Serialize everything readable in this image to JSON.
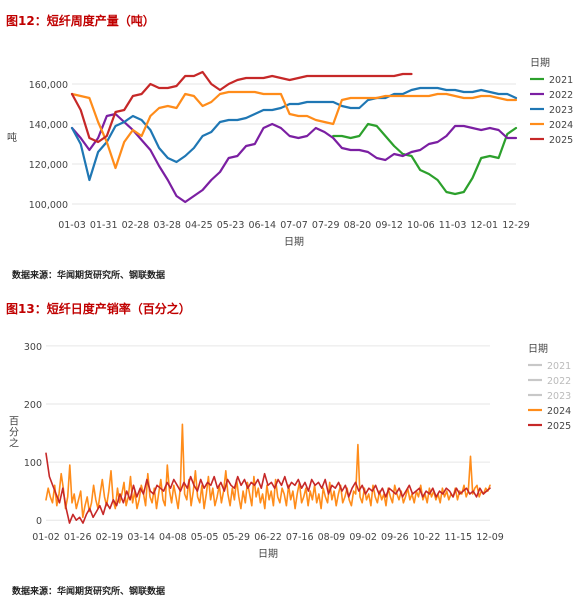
{
  "figures": [
    {
      "title": "图12：短纤周度产量（吨）",
      "source": "数据来源：华闻期货研究所、钢联数据"
    },
    {
      "title": "图13：短纤日度产销率（百分之）",
      "source": "数据来源：华闻期货研究所、钢联数据"
    }
  ],
  "chart_data": [
    {
      "type": "line",
      "title": "",
      "xlabel": "日期",
      "ylabel": "吨",
      "ylim": [
        95000,
        172000
      ],
      "yticks": [
        "100,000",
        "120,000",
        "140,000",
        "160,000"
      ],
      "ytick_values": [
        100000,
        120000,
        140000,
        160000
      ],
      "xtick_labels": [
        "01-03",
        "01-31",
        "02-28",
        "03-28",
        "04-25",
        "05-23",
        "06-14",
        "07-07",
        "07-29",
        "08-20",
        "09-12",
        "10-06",
        "11-03",
        "12-01",
        "12-29"
      ],
      "x_count": 52,
      "legend_title": "日期",
      "legend_position": "right",
      "grid": "horizontal",
      "series": [
        {
          "name": "2021",
          "color": "#2ca02c",
          "x": [
            30,
            31,
            32,
            33,
            34,
            35,
            36,
            37,
            38,
            39,
            40,
            41,
            42,
            43,
            44,
            45,
            46,
            47,
            48,
            49,
            50,
            51
          ],
          "values": [
            134000,
            134000,
            133000,
            134000,
            140000,
            139000,
            134000,
            129000,
            125000,
            124000,
            117000,
            115000,
            112000,
            106000,
            105000,
            106000,
            113000,
            123000,
            124000,
            123000,
            135000,
            138000
          ]
        },
        {
          "name": "2022",
          "color": "#7b1fa2",
          "x": [
            0,
            1,
            2,
            3,
            4,
            5,
            6,
            7,
            8,
            9,
            10,
            11,
            12,
            13,
            14,
            15,
            16,
            17,
            18,
            19,
            20,
            21,
            22,
            23,
            24,
            25,
            26,
            27,
            28,
            29,
            30,
            31,
            32,
            33,
            34,
            35,
            36,
            37,
            38,
            39,
            40,
            41,
            42,
            43,
            44,
            45,
            46,
            47,
            48,
            49,
            50,
            51
          ],
          "values": [
            138000,
            133000,
            127000,
            133000,
            144000,
            145000,
            141000,
            137000,
            132000,
            127000,
            119000,
            112000,
            104000,
            101000,
            104000,
            107000,
            112000,
            116000,
            123000,
            124000,
            129000,
            130000,
            138000,
            140000,
            138000,
            134000,
            133000,
            134000,
            138000,
            136000,
            133000,
            128000,
            127000,
            127000,
            126000,
            123000,
            122000,
            125000,
            124000,
            126000,
            127000,
            130000,
            131000,
            134000,
            139000,
            139000,
            138000,
            137000,
            138000,
            137000,
            133000,
            133000
          ]
        },
        {
          "name": "2023",
          "color": "#1f77b4",
          "x": [
            0,
            1,
            2,
            3,
            4,
            5,
            6,
            7,
            8,
            9,
            10,
            11,
            12,
            13,
            14,
            15,
            16,
            17,
            18,
            19,
            20,
            21,
            22,
            23,
            24,
            25,
            26,
            27,
            28,
            29,
            30,
            31,
            32,
            33,
            34,
            35,
            36,
            37,
            38,
            39,
            40,
            41,
            42,
            43,
            44,
            45,
            46,
            47,
            48,
            49,
            50,
            51
          ],
          "values": [
            138000,
            130000,
            112000,
            126000,
            131000,
            139000,
            141000,
            144000,
            142000,
            137000,
            128000,
            123000,
            121000,
            124000,
            128000,
            134000,
            136000,
            141000,
            142000,
            142000,
            143000,
            145000,
            147000,
            147000,
            148000,
            150000,
            150000,
            151000,
            151000,
            151000,
            151000,
            149000,
            148000,
            148000,
            152000,
            153000,
            153000,
            155000,
            155000,
            157000,
            158000,
            158000,
            158000,
            157000,
            157000,
            156000,
            156000,
            157000,
            156000,
            155000,
            155000,
            153000
          ]
        },
        {
          "name": "2024",
          "color": "#ff8c1a",
          "x": [
            0,
            1,
            2,
            3,
            4,
            5,
            6,
            7,
            8,
            9,
            10,
            11,
            12,
            13,
            14,
            15,
            16,
            17,
            18,
            19,
            20,
            21,
            22,
            23,
            24,
            25,
            26,
            27,
            28,
            29,
            30,
            31,
            32,
            33,
            34,
            35,
            36,
            37,
            38,
            39,
            40,
            41,
            42,
            43,
            44,
            45,
            46,
            47,
            48,
            49,
            50,
            51
          ],
          "values": [
            155000,
            154000,
            153000,
            141000,
            131000,
            118000,
            131000,
            137000,
            134000,
            144000,
            148000,
            149000,
            148000,
            155000,
            154000,
            149000,
            151000,
            155000,
            156000,
            156000,
            156000,
            156000,
            155000,
            155000,
            155000,
            145000,
            144000,
            144000,
            142000,
            141000,
            140000,
            152000,
            153000,
            153000,
            153000,
            153000,
            154000,
            154000,
            154000,
            154000,
            154000,
            154000,
            155000,
            155000,
            154000,
            153000,
            153000,
            154000,
            154000,
            153000,
            152000,
            152000
          ]
        },
        {
          "name": "2025",
          "color": "#c62828",
          "x": [
            0,
            1,
            2,
            3,
            4,
            5,
            6,
            7,
            8,
            9,
            10,
            11,
            12,
            13,
            14,
            15,
            16,
            17,
            18,
            19,
            20,
            21,
            22,
            23,
            24,
            25,
            26,
            27,
            28,
            29,
            30,
            31,
            32,
            33,
            34,
            35,
            36,
            37,
            38,
            39
          ],
          "values": [
            155000,
            147000,
            133000,
            131000,
            134000,
            146000,
            147000,
            154000,
            155000,
            160000,
            158000,
            158000,
            159000,
            164000,
            164000,
            166000,
            160000,
            157000,
            160000,
            162000,
            163000,
            163000,
            163000,
            164000,
            163000,
            162000,
            163000,
            164000,
            164000,
            164000,
            164000,
            164000,
            164000,
            164000,
            164000,
            164000,
            164000,
            164000,
            165000,
            165000
          ]
        }
      ]
    },
    {
      "type": "line",
      "title": "",
      "xlabel": "日期",
      "ylabel": "百分之",
      "ylim": [
        -10,
        310
      ],
      "yticks": [
        "0",
        "100",
        "200",
        "300"
      ],
      "ytick_values": [
        0,
        100,
        200,
        300
      ],
      "xtick_labels": [
        "01-02",
        "01-26",
        "02-19",
        "03-14",
        "04-08",
        "05-05",
        "05-29",
        "06-22",
        "07-16",
        "08-09",
        "09-02",
        "09-26",
        "10-22",
        "11-15",
        "12-09"
      ],
      "legend_title": "日期",
      "legend_position": "right",
      "grid": "horizontal",
      "series": [
        {
          "name": "2021",
          "color": "#c8c8c8",
          "values": []
        },
        {
          "name": "2022",
          "color": "#c8c8c8",
          "values": []
        },
        {
          "name": "2023",
          "color": "#c8c8c8",
          "values": []
        },
        {
          "name": "2024",
          "color": "#ff8c1a",
          "values": [
            35,
            55,
            40,
            30,
            60,
            25,
            45,
            80,
            55,
            20,
            40,
            95,
            30,
            45,
            20,
            35,
            50,
            5,
            25,
            40,
            15,
            30,
            60,
            35,
            20,
            45,
            70,
            40,
            25,
            50,
            85,
            35,
            20,
            55,
            30,
            45,
            65,
            25,
            40,
            75,
            30,
            50,
            20,
            35,
            60,
            45,
            25,
            80,
            40,
            30,
            55,
            20,
            45,
            70,
            35,
            25,
            95,
            50,
            30,
            60,
            40,
            20,
            55,
            165,
            45,
            35,
            70,
            25,
            50,
            85,
            40,
            30,
            60,
            20,
            45,
            75,
            35,
            55,
            25,
            40,
            60,
            30,
            50,
            85,
            45,
            25,
            55,
            35,
            70,
            40,
            20,
            50,
            30,
            65,
            45,
            25,
            75,
            40,
            55,
            30,
            45,
            20,
            60,
            35,
            50,
            25,
            70,
            40,
            30,
            55,
            45,
            25,
            60,
            35,
            50,
            20,
            45,
            65,
            30,
            40,
            55,
            25,
            50,
            35,
            60,
            30,
            45,
            20,
            55,
            40,
            30,
            65,
            35,
            50,
            25,
            45,
            60,
            30,
            40,
            55,
            35,
            25,
            50,
            45,
            130,
            40,
            30,
            55,
            35,
            45,
            25,
            60,
            40,
            30,
            50,
            35,
            45,
            25,
            55,
            40,
            30,
            60,
            45,
            35,
            50,
            30,
            40,
            55,
            35,
            45,
            30,
            50,
            40,
            60,
            35,
            45,
            30,
            55,
            40,
            50,
            35,
            45,
            30,
            55,
            40,
            50,
            35,
            45,
            40,
            55,
            35,
            50,
            45,
            60,
            40,
            50,
            110,
            45,
            55,
            60,
            40,
            50,
            45,
            55,
            50,
            60
          ]
        },
        {
          "name": "2025",
          "color": "#c62828",
          "values": [
            115,
            75,
            60,
            45,
            30,
            55,
            20,
            -5,
            10,
            0,
            5,
            -5,
            10,
            20,
            5,
            15,
            25,
            10,
            30,
            20,
            35,
            25,
            45,
            30,
            50,
            35,
            60,
            40,
            55,
            45,
            70,
            50,
            45,
            60,
            55,
            50,
            65,
            55,
            70,
            60,
            50,
            65,
            55,
            75,
            60,
            50,
            70,
            55,
            65,
            60,
            75,
            55,
            65,
            50,
            70,
            60,
            55,
            75,
            60,
            70,
            55,
            65,
            60,
            70,
            55,
            80,
            60,
            65,
            55,
            70,
            60,
            75,
            55,
            65,
            60,
            70,
            55,
            65,
            50,
            70,
            60,
            65,
            55,
            70,
            45,
            60,
            55,
            65,
            50,
            60,
            40,
            55,
            65,
            50,
            60,
            45,
            55,
            50,
            60,
            45,
            55,
            40,
            55,
            50,
            45,
            55,
            40,
            50,
            60,
            45,
            50,
            55,
            40,
            50,
            45,
            55,
            40,
            50,
            45,
            55,
            50,
            40,
            55,
            45,
            50,
            55,
            45,
            50,
            40,
            55,
            45,
            50,
            55
          ]
        }
      ]
    }
  ]
}
